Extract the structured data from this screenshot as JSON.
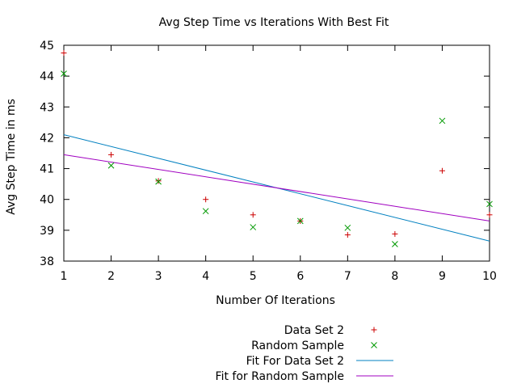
{
  "chart_data": {
    "type": "scatter",
    "title": "Avg Step Time vs Iterations With Best Fit",
    "xlabel": "Number Of Iterations",
    "ylabel": "Avg Step Time in ms",
    "xlim": [
      1,
      10
    ],
    "ylim": [
      38,
      45
    ],
    "xticks": [
      "1",
      "2",
      "3",
      "4",
      "5",
      "6",
      "7",
      "8",
      "9",
      "10"
    ],
    "yticks": [
      "38",
      "39",
      "40",
      "41",
      "42",
      "43",
      "44",
      "45"
    ],
    "grid": false,
    "legend_position": "bottom-right",
    "series": [
      {
        "name": "Data Set 2",
        "kind": "points",
        "marker": "plus",
        "color": "#cc0000",
        "x": [
          1,
          2,
          3,
          4,
          5,
          6,
          7,
          8,
          9,
          10
        ],
        "y": [
          44.75,
          41.45,
          40.6,
          40.0,
          39.5,
          39.3,
          38.85,
          38.88,
          40.93,
          39.5
        ]
      },
      {
        "name": "Random Sample",
        "kind": "points",
        "marker": "cross",
        "color": "#009900",
        "x": [
          1,
          2,
          3,
          4,
          5,
          6,
          7,
          8,
          9,
          10
        ],
        "y": [
          44.08,
          41.1,
          40.58,
          39.62,
          39.1,
          39.3,
          39.08,
          38.55,
          42.55,
          39.85
        ]
      },
      {
        "name": "Fit For Data Set 2",
        "kind": "line",
        "color": "#0080c0",
        "x": [
          1,
          10
        ],
        "y": [
          42.1,
          38.65
        ]
      },
      {
        "name": "Fit for Random Sample",
        "kind": "line",
        "color": "#a000c0",
        "x": [
          1,
          10
        ],
        "y": [
          41.45,
          39.3
        ]
      }
    ]
  }
}
